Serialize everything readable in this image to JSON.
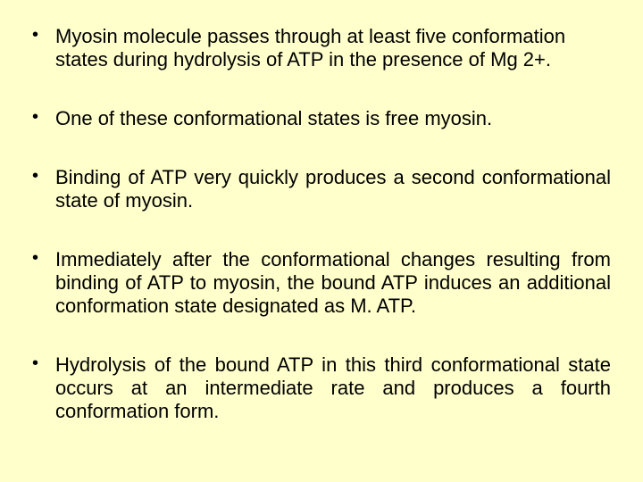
{
  "background_color": "#ffffcc",
  "text_color": "#000000",
  "font_family": "Arial",
  "font_size_pt": 22,
  "bullets": [
    {
      "text": "Myosin molecule passes through at least five conformation states during hydrolysis of ATP in the presence of Mg 2+.",
      "justify": false
    },
    {
      "text": "One of these conformational states is free myosin.",
      "justify": false
    },
    {
      "text": "Binding of ATP very quickly produces a second conformational state of myosin.",
      "justify": true
    },
    {
      "text": "Immediately after the conformational changes resulting from binding of ATP to myosin, the bound ATP induces an additional conformation state designated as M. ATP.",
      "justify": true
    },
    {
      "text": "Hydrolysis of the bound ATP in this third conformational state occurs at an intermediate rate and produces a fourth conformation form.",
      "justify": true
    }
  ]
}
